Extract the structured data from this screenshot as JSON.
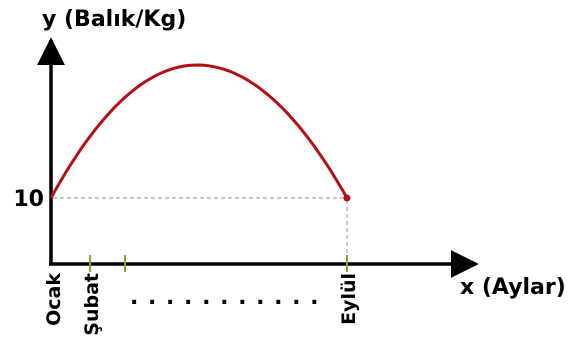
{
  "chart_data": {
    "type": "line",
    "ylabel": "y (Balık/Kg)",
    "xlabel": "x (Aylar)",
    "y_tick_label": "10",
    "x_tick_labels": [
      "Ocak",
      "Şubat",
      "Eylül"
    ],
    "ellipsis": ". . . . . . . . . . .",
    "curve": {
      "shape": "downward parabola",
      "start": {
        "x": "Ocak",
        "y": 10
      },
      "end": {
        "x": "Eylül",
        "y": 10
      }
    },
    "colors": {
      "curve": "#b50f14",
      "axes": "#000000",
      "guides": "#a6a6a6",
      "tick_marks": "#8fa33c"
    },
    "grid": false
  }
}
